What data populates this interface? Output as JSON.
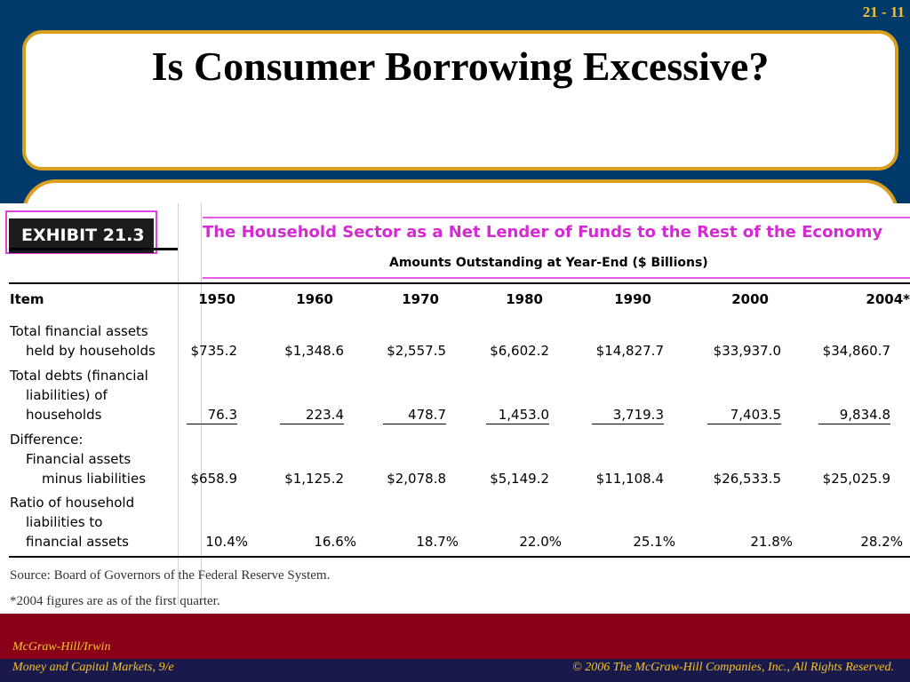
{
  "slide": {
    "number": "21 - 11",
    "title": "Is Consumer Borrowing Excessive?"
  },
  "exhibit": {
    "label": "EXHIBIT 21.3",
    "title": "The Household Sector as a Net Lender of Funds to the Rest of the Economy",
    "subheader": "Amounts Outstanding at Year-End ($ Billions)",
    "item_header": "Item",
    "years": [
      "1950",
      "1960",
      "1970",
      "1980",
      "1990",
      "2000",
      "2004*"
    ],
    "rows": [
      {
        "label_lines": [
          "Total financial assets",
          "held by households"
        ],
        "values": [
          "$735.2",
          "$1,348.6",
          "$2,557.5",
          "$6,602.2",
          "$14,827.7",
          "$33,937.0",
          "$34,860.7"
        ]
      },
      {
        "label_lines": [
          "Total debts (financial",
          "liabilities) of",
          "households"
        ],
        "values": [
          "76.3",
          "223.4",
          "478.7",
          "1,453.0",
          "3,719.3",
          "7,403.5",
          "9,834.8"
        ]
      },
      {
        "label_lines": [
          "Difference:",
          "Financial assets",
          "minus liabilities"
        ],
        "values": [
          "$658.9",
          "$1,125.2",
          "$2,078.8",
          "$5,149.2",
          "$11,108.4",
          "$26,533.5",
          "$25,025.9"
        ]
      },
      {
        "label_lines": [
          "Ratio of household",
          "liabilities to",
          "financial assets"
        ],
        "values": [
          "10.4%",
          "16.6%",
          "18.7%",
          "22.0%",
          "25.1%",
          "21.8%",
          "28.2%"
        ]
      }
    ],
    "source": "Source: Board of Governors of the Federal Reserve System.",
    "footnote": "*2004 figures are as of the first quarter."
  },
  "footer": {
    "publisher": "McGraw-Hill/Irwin",
    "book": "Money and Capital Markets, 9/e",
    "copyright": "© 2006  The McGraw-Hill Companies, Inc., All Rights Reserved."
  }
}
